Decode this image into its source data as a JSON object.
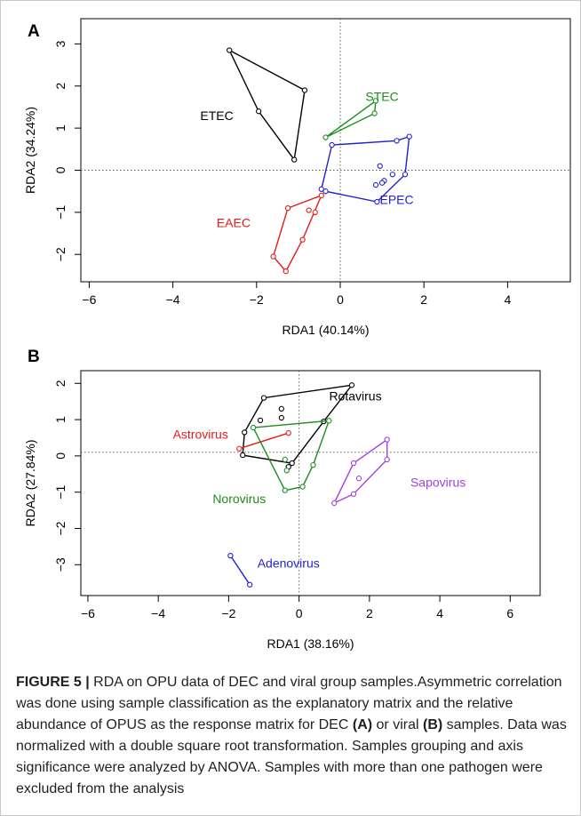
{
  "figure": {
    "caption_label": "FIGURE 5 |",
    "caption_parts": [
      " RDA on OPU data of DEC and viral group samples.Asymmetric correlation was done using sample classification as the explanatory matrix and the relative abundance of OPUS as the response matrix for DEC ",
      "(A)",
      " or viral ",
      "(B)",
      " samples. Data was normalized with a double square root transformation. Samples grouping and axis significance were analyzed by ANOVA. Samples with more than one pathogen were excluded from the analysis"
    ]
  },
  "chart_data": [
    {
      "type": "scatter",
      "panel_label": "A",
      "xlabel": "RDA1 (40.14%)",
      "ylabel": "RDA2 (34.24%)",
      "xlim": [
        -6.2,
        5.5
      ],
      "ylim": [
        -2.65,
        3.6
      ],
      "xticks": [
        -6,
        -4,
        -2,
        0,
        2,
        4
      ],
      "yticks": [
        -2,
        -1,
        0,
        1,
        2,
        3
      ],
      "reference_lines": {
        "x": 0,
        "y": 0,
        "style": "dotted"
      },
      "grid": false,
      "groups": [
        {
          "name": "ETEC",
          "color": "#000000",
          "label_pos": [
            -2.95,
            1.3
          ],
          "hull": [
            [
              -2.65,
              2.85
            ],
            [
              -0.85,
              1.9
            ],
            [
              -1.1,
              0.25
            ],
            [
              -1.95,
              1.4
            ]
          ],
          "points": [
            [
              -2.65,
              2.85
            ],
            [
              -0.85,
              1.9
            ],
            [
              -1.1,
              0.25
            ],
            [
              -1.95,
              1.4
            ]
          ]
        },
        {
          "name": "STEC",
          "color": "#1e8c1e",
          "label_pos": [
            1.0,
            1.75
          ],
          "hull": [
            [
              -0.35,
              0.78
            ],
            [
              0.85,
              1.65
            ],
            [
              0.82,
              1.35
            ]
          ],
          "points": [
            [
              -0.35,
              0.78
            ],
            [
              0.85,
              1.65
            ],
            [
              0.82,
              1.35
            ]
          ]
        },
        {
          "name": "EPEC",
          "color": "#1f1fd6",
          "label_pos": [
            1.35,
            -0.7
          ],
          "hull": [
            [
              -0.2,
              0.6
            ],
            [
              -0.45,
              -0.45
            ],
            [
              -0.35,
              -0.5
            ],
            [
              0.88,
              -0.75
            ],
            [
              1.55,
              -0.1
            ],
            [
              1.65,
              0.8
            ],
            [
              1.35,
              0.7
            ]
          ],
          "points": [
            [
              -0.2,
              0.6
            ],
            [
              -0.45,
              -0.45
            ],
            [
              -0.35,
              -0.5
            ],
            [
              0.88,
              -0.75
            ],
            [
              1.55,
              -0.1
            ],
            [
              1.65,
              0.8
            ],
            [
              1.35,
              0.7
            ],
            [
              0.95,
              0.1
            ],
            [
              1.25,
              -0.1
            ],
            [
              1.05,
              -0.25
            ],
            [
              0.85,
              -0.35
            ],
            [
              1.0,
              -0.3
            ]
          ]
        },
        {
          "name": "EAEC",
          "color": "#e31a1c",
          "label_pos": [
            -2.55,
            -1.25
          ],
          "hull": [
            [
              -1.25,
              -0.9
            ],
            [
              -0.45,
              -0.6
            ],
            [
              -0.9,
              -1.65
            ],
            [
              -1.3,
              -2.4
            ],
            [
              -1.6,
              -2.05
            ]
          ],
          "points": [
            [
              -1.25,
              -0.9
            ],
            [
              -0.45,
              -0.6
            ],
            [
              -0.9,
              -1.65
            ],
            [
              -1.3,
              -2.4
            ],
            [
              -1.6,
              -2.05
            ],
            [
              -0.75,
              -0.95
            ],
            [
              -0.6,
              -1.0
            ]
          ]
        }
      ]
    },
    {
      "type": "scatter",
      "panel_label": "B",
      "xlabel": "RDA1 (38.16%)",
      "ylabel": "RDA2 (27.84%)",
      "xlim": [
        -6.2,
        6.85
      ],
      "ylim": [
        -3.85,
        2.35
      ],
      "xticks": [
        -6,
        -4,
        -2,
        0,
        2,
        4,
        6
      ],
      "yticks": [
        -3,
        -2,
        -1,
        0,
        1,
        2
      ],
      "reference_lines": {
        "x": 0,
        "y": 0.1,
        "style": "dotted"
      },
      "grid": false,
      "groups": [
        {
          "name": "Rotavirus",
          "color": "#000000",
          "label_pos": [
            1.6,
            1.65
          ],
          "hull": [
            [
              -1.6,
              0.02
            ],
            [
              -1.55,
              0.65
            ],
            [
              -1.0,
              1.6
            ],
            [
              1.5,
              1.95
            ],
            [
              0.7,
              0.95
            ],
            [
              -0.2,
              -0.2
            ]
          ],
          "points": [
            [
              -1.6,
              0.02
            ],
            [
              -1.55,
              0.65
            ],
            [
              -1.0,
              1.6
            ],
            [
              1.5,
              1.95
            ],
            [
              0.7,
              0.95
            ],
            [
              -0.2,
              -0.2
            ],
            [
              -1.1,
              0.98
            ],
            [
              -0.5,
              1.3
            ],
            [
              -0.5,
              1.05
            ],
            [
              -0.3,
              -0.3
            ]
          ]
        },
        {
          "name": "Astrovirus",
          "color": "#e31a1c",
          "label_pos": [
            -2.8,
            0.6
          ],
          "hull": [
            [
              -1.7,
              0.2
            ],
            [
              -0.3,
              0.63
            ]
          ],
          "points": [
            [
              -1.7,
              0.2
            ],
            [
              -0.3,
              0.63
            ]
          ]
        },
        {
          "name": "Norovirus",
          "color": "#1e8c1e",
          "label_pos": [
            -1.7,
            -1.18
          ],
          "hull": [
            [
              -1.3,
              0.78
            ],
            [
              0.85,
              0.97
            ],
            [
              0.4,
              -0.25
            ],
            [
              0.1,
              -0.85
            ],
            [
              -0.4,
              -0.95
            ]
          ],
          "points": [
            [
              -1.3,
              0.78
            ],
            [
              0.85,
              0.97
            ],
            [
              0.4,
              -0.25
            ],
            [
              0.1,
              -0.85
            ],
            [
              -0.4,
              -0.95
            ],
            [
              -0.35,
              -0.4
            ],
            [
              -0.4,
              -0.1
            ]
          ]
        },
        {
          "name": "Sapovirus",
          "color": "#a040e0",
          "label_pos": [
            3.95,
            -0.72
          ],
          "hull": [
            [
              1.0,
              -1.3
            ],
            [
              1.55,
              -0.2
            ],
            [
              2.5,
              0.45
            ],
            [
              2.5,
              -0.1
            ],
            [
              1.55,
              -1.05
            ]
          ],
          "points": [
            [
              1.0,
              -1.3
            ],
            [
              1.55,
              -0.2
            ],
            [
              2.5,
              0.45
            ],
            [
              2.5,
              -0.1
            ],
            [
              1.55,
              -1.05
            ],
            [
              1.7,
              -0.62
            ]
          ]
        },
        {
          "name": "Adenovirus",
          "color": "#1f1fd6",
          "label_pos": [
            -0.3,
            -2.95
          ],
          "hull": [
            [
              -1.95,
              -2.75
            ],
            [
              -1.4,
              -3.55
            ]
          ],
          "points": [
            [
              -1.95,
              -2.75
            ],
            [
              -1.4,
              -3.55
            ]
          ]
        }
      ]
    }
  ]
}
